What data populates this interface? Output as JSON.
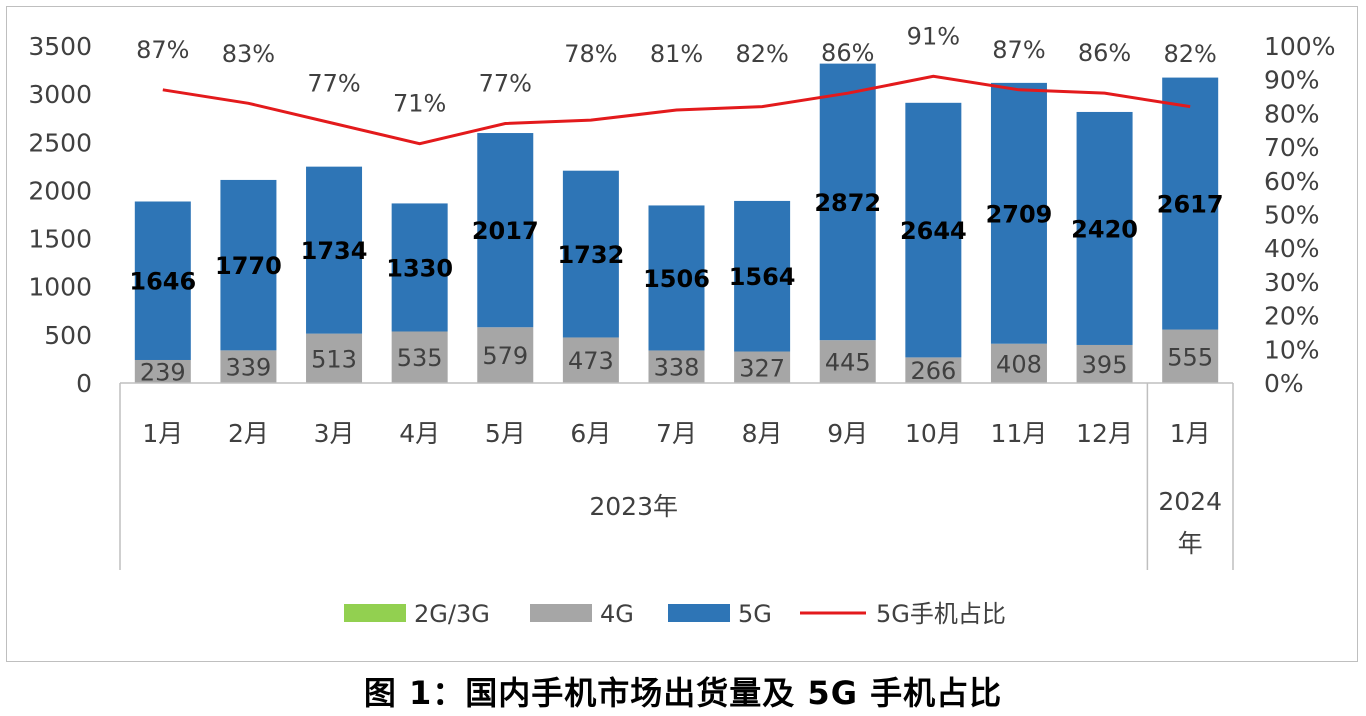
{
  "caption": "图 1：国内手机市场出货量及 5G 手机占比",
  "chart_data": {
    "type": "bar",
    "stacked": true,
    "categories": [
      "1月",
      "2月",
      "3月",
      "4月",
      "5月",
      "6月",
      "7月",
      "8月",
      "9月",
      "10月",
      "11月",
      "12月",
      "1月"
    ],
    "groups": [
      {
        "label": "2023年",
        "count": 12
      },
      {
        "label": "2024年",
        "count": 1
      }
    ],
    "series": [
      {
        "name": "2G/3G",
        "color": "#92d050",
        "values": [
          0,
          0,
          0,
          0,
          0,
          0,
          0,
          0,
          0,
          0,
          0,
          0,
          0
        ]
      },
      {
        "name": "4G",
        "color": "#a6a6a6",
        "values": [
          239,
          339,
          513,
          535,
          579,
          473,
          338,
          327,
          445,
          266,
          408,
          395,
          555
        ]
      },
      {
        "name": "5G",
        "color": "#2e75b6",
        "values": [
          1646,
          1770,
          1734,
          1330,
          2017,
          1732,
          1506,
          1564,
          2872,
          2644,
          2709,
          2420,
          2617
        ]
      },
      {
        "name": "5G手机占比",
        "type": "line",
        "axis": "right",
        "color": "#e31a1c",
        "values": [
          87,
          83,
          77,
          71,
          77,
          78,
          81,
          82,
          86,
          91,
          87,
          86,
          82
        ],
        "labels": [
          "87%",
          "83%",
          "77%",
          "71%",
          "77%",
          "78%",
          "81%",
          "82%",
          "86%",
          "91%",
          "87%",
          "86%",
          "82%"
        ]
      }
    ],
    "y_left": {
      "min": 0,
      "max": 3500,
      "ticks": [
        "0",
        "500",
        "1000",
        "1500",
        "2000",
        "2500",
        "3000",
        "3500"
      ]
    },
    "y_right": {
      "min": 0,
      "max": 100,
      "ticks": [
        "0%",
        "10%",
        "20%",
        "30%",
        "40%",
        "50%",
        "60%",
        "70%",
        "80%",
        "90%",
        "100%"
      ]
    },
    "legend_position": "bottom",
    "grid": false
  }
}
